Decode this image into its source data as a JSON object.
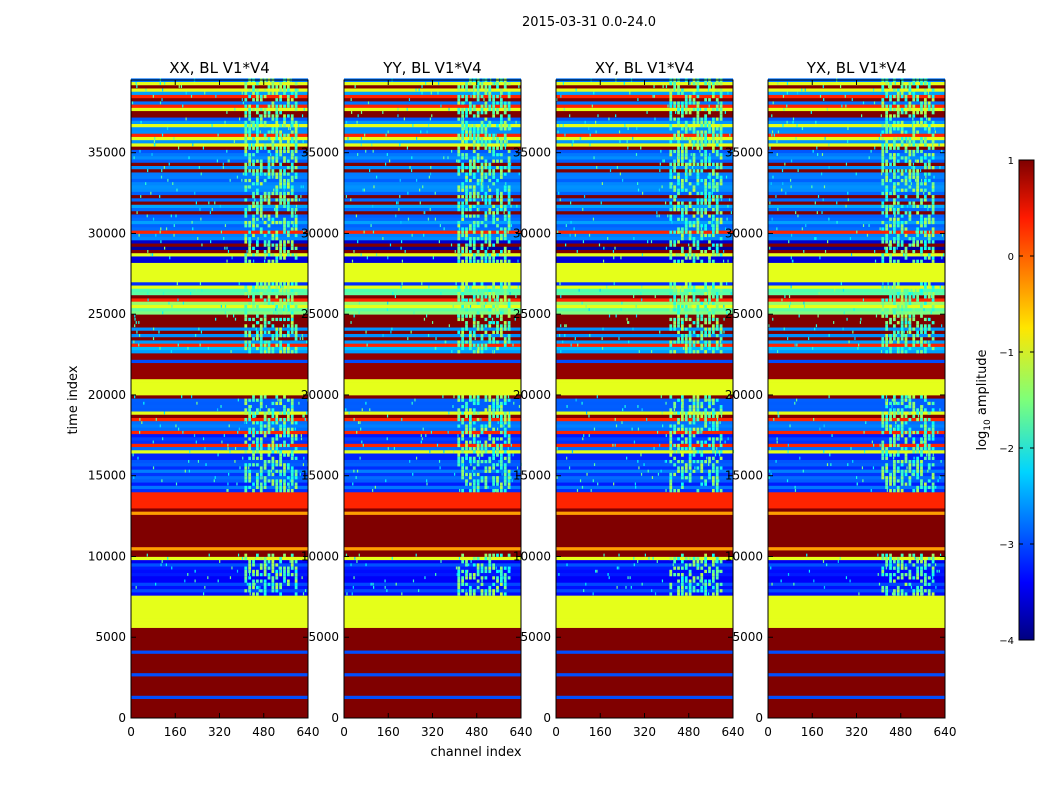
{
  "figure": {
    "suptitle": "2015-03-31 0.0-24.0"
  },
  "chart_data": {
    "type": "heatmap",
    "title": "2015-03-31 0.0-24.0",
    "xlabel": "channel index",
    "ylabel": "time index",
    "xlim": [
      0,
      640
    ],
    "ylim": [
      0,
      39500
    ],
    "xticks": [
      0,
      160,
      320,
      480,
      640
    ],
    "yticks": [
      0,
      5000,
      10000,
      15000,
      20000,
      25000,
      30000,
      35000
    ],
    "panels": [
      {
        "title": "XX, BL V1*V4",
        "polarization": "XX",
        "baseline": "V1*V4"
      },
      {
        "title": "YY, BL V1*V4",
        "polarization": "YY",
        "baseline": "V1*V4"
      },
      {
        "title": "XY, BL V1*V4",
        "polarization": "XY",
        "baseline": "V1*V4"
      },
      {
        "title": "YX, BL V1*V4",
        "polarization": "YX",
        "baseline": "V1*V4"
      }
    ],
    "rfi_channel_range": [
      410,
      600
    ],
    "time_bands": [
      {
        "t0": 0,
        "t1": 5600,
        "level": 1.0
      },
      {
        "t0": 5600,
        "t1": 7600,
        "level": -1.0
      },
      {
        "t0": 7600,
        "t1": 10200,
        "level": -3.2
      },
      {
        "t0": 10200,
        "t1": 13000,
        "level": 1.0
      },
      {
        "t0": 13000,
        "t1": 14000,
        "level": 0.2
      },
      {
        "t0": 14000,
        "t1": 20000,
        "level": -3.0
      },
      {
        "t0": 20000,
        "t1": 21000,
        "level": -1.0
      },
      {
        "t0": 21000,
        "t1": 22500,
        "level": 0.9
      },
      {
        "t0": 22500,
        "t1": 25000,
        "level": -2.6
      },
      {
        "t0": 25000,
        "t1": 26500,
        "level": -1.6
      },
      {
        "t0": 26500,
        "t1": 27000,
        "level": -3.4
      },
      {
        "t0": 27000,
        "t1": 28200,
        "level": -1.0
      },
      {
        "t0": 28200,
        "t1": 29500,
        "level": -3.6
      },
      {
        "t0": 29500,
        "t1": 39500,
        "level": -2.8
      }
    ],
    "colorbar": {
      "label": "log10 amplitude",
      "label_main": "log",
      "label_sub": "10",
      "label_rest": " amplitude",
      "range": [
        -4,
        1
      ],
      "ticks": [
        -4,
        -3,
        -2,
        -1,
        0,
        1
      ],
      "tick_labels": [
        "−4",
        "−3",
        "−2",
        "−1",
        "0",
        "1"
      ],
      "colormap": "jet"
    }
  }
}
